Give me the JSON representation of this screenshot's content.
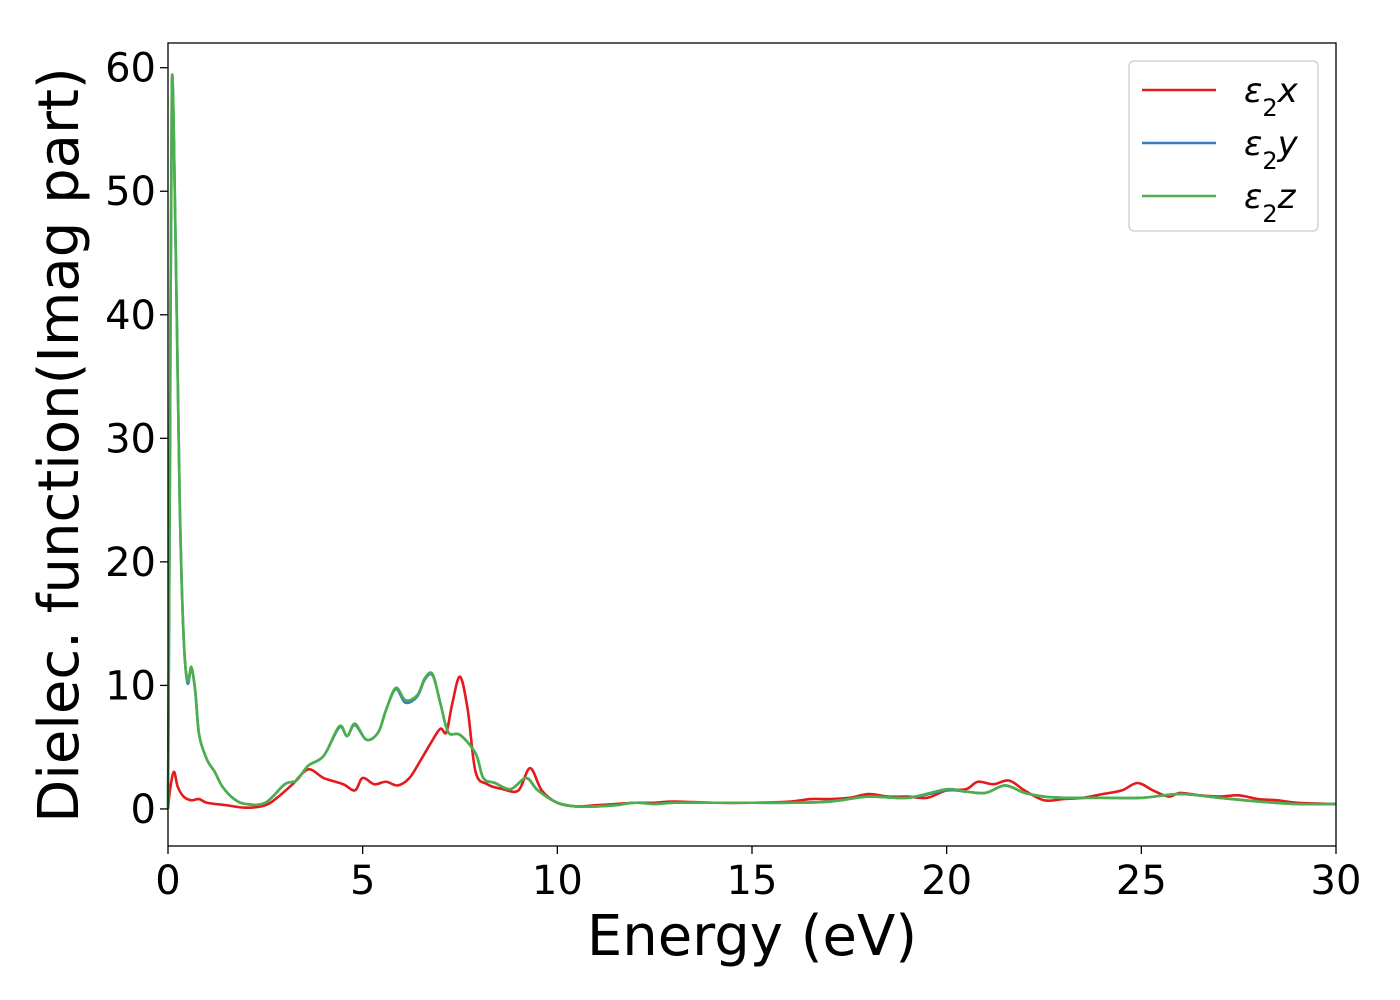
{
  "chart_data": {
    "type": "line",
    "xlabel": "Energy (eV)",
    "ylabel": "Dielec. function(Imag part)",
    "xlim": [
      0,
      30
    ],
    "ylim": [
      -3,
      62
    ],
    "x_ticks": [
      0,
      5,
      10,
      15,
      20,
      25,
      30
    ],
    "y_ticks": [
      0,
      10,
      20,
      30,
      40,
      50,
      60
    ],
    "grid": false,
    "legend_position": "top-right",
    "series": [
      {
        "name": "ε₂x",
        "legend_main": "ε",
        "legend_sub": "2",
        "legend_var": "x",
        "color": "#e41a1c",
        "points": [
          [
            0,
            0
          ],
          [
            0.05,
            1.5
          ],
          [
            0.15,
            3.0
          ],
          [
            0.25,
            1.8
          ],
          [
            0.4,
            1.0
          ],
          [
            0.6,
            0.7
          ],
          [
            0.8,
            0.8
          ],
          [
            1.0,
            0.5
          ],
          [
            1.5,
            0.3
          ],
          [
            2.0,
            0.1
          ],
          [
            2.5,
            0.3
          ],
          [
            2.8,
            0.9
          ],
          [
            3.2,
            2.0
          ],
          [
            3.6,
            3.2
          ],
          [
            4.0,
            2.5
          ],
          [
            4.5,
            2.0
          ],
          [
            4.8,
            1.5
          ],
          [
            5.0,
            2.5
          ],
          [
            5.3,
            2.0
          ],
          [
            5.6,
            2.2
          ],
          [
            5.9,
            1.9
          ],
          [
            6.2,
            2.5
          ],
          [
            6.5,
            4.0
          ],
          [
            6.8,
            5.6
          ],
          [
            7.0,
            6.5
          ],
          [
            7.15,
            6.2
          ],
          [
            7.3,
            8.5
          ],
          [
            7.5,
            10.7
          ],
          [
            7.7,
            8.0
          ],
          [
            7.9,
            3.0
          ],
          [
            8.2,
            2.0
          ],
          [
            8.6,
            1.6
          ],
          [
            9.0,
            1.5
          ],
          [
            9.3,
            3.3
          ],
          [
            9.6,
            1.5
          ],
          [
            10.0,
            0.5
          ],
          [
            10.5,
            0.2
          ],
          [
            11,
            0.3
          ],
          [
            11.5,
            0.4
          ],
          [
            12,
            0.5
          ],
          [
            12.5,
            0.5
          ],
          [
            13,
            0.6
          ],
          [
            14,
            0.5
          ],
          [
            15,
            0.5
          ],
          [
            16,
            0.6
          ],
          [
            16.5,
            0.8
          ],
          [
            17,
            0.8
          ],
          [
            17.5,
            0.9
          ],
          [
            18,
            1.2
          ],
          [
            18.5,
            1.0
          ],
          [
            19,
            1.0
          ],
          [
            19.5,
            0.9
          ],
          [
            20,
            1.5
          ],
          [
            20.5,
            1.6
          ],
          [
            20.8,
            2.2
          ],
          [
            21.2,
            2.0
          ],
          [
            21.6,
            2.3
          ],
          [
            22,
            1.5
          ],
          [
            22.5,
            0.7
          ],
          [
            23,
            0.8
          ],
          [
            23.5,
            0.9
          ],
          [
            24,
            1.2
          ],
          [
            24.5,
            1.5
          ],
          [
            24.9,
            2.1
          ],
          [
            25.3,
            1.5
          ],
          [
            25.7,
            1.0
          ],
          [
            26,
            1.3
          ],
          [
            26.5,
            1.1
          ],
          [
            27,
            1.0
          ],
          [
            27.5,
            1.1
          ],
          [
            28,
            0.8
          ],
          [
            28.5,
            0.7
          ],
          [
            29,
            0.5
          ],
          [
            30,
            0.4
          ]
        ]
      },
      {
        "name": "ε₂y",
        "legend_main": "ε",
        "legend_sub": "2",
        "legend_var": "y",
        "color": "#377eb8",
        "points": [
          [
            0,
            0
          ],
          [
            0.05,
            28
          ],
          [
            0.1,
            58.8
          ],
          [
            0.2,
            45
          ],
          [
            0.3,
            25
          ],
          [
            0.4,
            14
          ],
          [
            0.5,
            10.2
          ],
          [
            0.6,
            11.4
          ],
          [
            0.7,
            9.5
          ],
          [
            0.8,
            6.0
          ],
          [
            1.0,
            4.0
          ],
          [
            1.2,
            3.0
          ],
          [
            1.4,
            1.8
          ],
          [
            1.7,
            0.8
          ],
          [
            2.0,
            0.4
          ],
          [
            2.5,
            0.5
          ],
          [
            3.0,
            2.0
          ],
          [
            3.3,
            2.3
          ],
          [
            3.6,
            3.5
          ],
          [
            4.0,
            4.3
          ],
          [
            4.4,
            6.6
          ],
          [
            4.6,
            5.9
          ],
          [
            4.8,
            6.8
          ],
          [
            5.1,
            5.6
          ],
          [
            5.4,
            6.2
          ],
          [
            5.6,
            8.0
          ],
          [
            5.85,
            9.7
          ],
          [
            6.1,
            8.6
          ],
          [
            6.4,
            9.1
          ],
          [
            6.6,
            10.5
          ],
          [
            6.8,
            10.8
          ],
          [
            7.0,
            8.5
          ],
          [
            7.2,
            6.2
          ],
          [
            7.5,
            6.0
          ],
          [
            7.9,
            4.5
          ],
          [
            8.1,
            2.5
          ],
          [
            8.4,
            2.1
          ],
          [
            8.8,
            1.6
          ],
          [
            9.2,
            2.5
          ],
          [
            9.5,
            1.5
          ],
          [
            10,
            0.5
          ],
          [
            10.5,
            0.2
          ],
          [
            11,
            0.2
          ],
          [
            11.5,
            0.3
          ],
          [
            12,
            0.5
          ],
          [
            12.5,
            0.4
          ],
          [
            13,
            0.5
          ],
          [
            14,
            0.5
          ],
          [
            15,
            0.5
          ],
          [
            16,
            0.5
          ],
          [
            17,
            0.6
          ],
          [
            18,
            1.0
          ],
          [
            19,
            0.9
          ],
          [
            20,
            1.5
          ],
          [
            20.5,
            1.4
          ],
          [
            21,
            1.3
          ],
          [
            21.5,
            1.9
          ],
          [
            22,
            1.3
          ],
          [
            22.5,
            1.0
          ],
          [
            23,
            0.9
          ],
          [
            24,
            0.9
          ],
          [
            25,
            0.9
          ],
          [
            26,
            1.2
          ],
          [
            27,
            0.9
          ],
          [
            28,
            0.6
          ],
          [
            29,
            0.4
          ],
          [
            30,
            0.4
          ]
        ]
      },
      {
        "name": "ε₂z",
        "legend_main": "ε",
        "legend_sub": "2",
        "legend_var": "z",
        "color": "#4daf4a",
        "points": [
          [
            0,
            0
          ],
          [
            0.05,
            28
          ],
          [
            0.1,
            59.0
          ],
          [
            0.2,
            45
          ],
          [
            0.3,
            25
          ],
          [
            0.4,
            14
          ],
          [
            0.5,
            10.4
          ],
          [
            0.6,
            11.5
          ],
          [
            0.7,
            9.6
          ],
          [
            0.8,
            6.0
          ],
          [
            1.0,
            4.0
          ],
          [
            1.2,
            3.0
          ],
          [
            1.4,
            1.8
          ],
          [
            1.7,
            0.8
          ],
          [
            2.0,
            0.4
          ],
          [
            2.5,
            0.5
          ],
          [
            3.0,
            2.0
          ],
          [
            3.3,
            2.3
          ],
          [
            3.6,
            3.5
          ],
          [
            4.0,
            4.3
          ],
          [
            4.4,
            6.7
          ],
          [
            4.6,
            5.9
          ],
          [
            4.8,
            6.9
          ],
          [
            5.1,
            5.6
          ],
          [
            5.4,
            6.2
          ],
          [
            5.6,
            8.0
          ],
          [
            5.85,
            9.8
          ],
          [
            6.1,
            8.8
          ],
          [
            6.4,
            9.2
          ],
          [
            6.6,
            10.6
          ],
          [
            6.8,
            10.9
          ],
          [
            7.0,
            8.5
          ],
          [
            7.2,
            6.2
          ],
          [
            7.5,
            6.0
          ],
          [
            7.9,
            4.5
          ],
          [
            8.1,
            2.5
          ],
          [
            8.4,
            2.1
          ],
          [
            8.8,
            1.6
          ],
          [
            9.2,
            2.5
          ],
          [
            9.5,
            1.5
          ],
          [
            10,
            0.5
          ],
          [
            10.5,
            0.2
          ],
          [
            11,
            0.2
          ],
          [
            11.5,
            0.3
          ],
          [
            12,
            0.5
          ],
          [
            12.5,
            0.4
          ],
          [
            13,
            0.5
          ],
          [
            14,
            0.5
          ],
          [
            15,
            0.5
          ],
          [
            16,
            0.5
          ],
          [
            17,
            0.6
          ],
          [
            18,
            1.0
          ],
          [
            19,
            0.9
          ],
          [
            20,
            1.6
          ],
          [
            20.5,
            1.4
          ],
          [
            21,
            1.3
          ],
          [
            21.5,
            1.9
          ],
          [
            22,
            1.3
          ],
          [
            22.5,
            1.0
          ],
          [
            23,
            0.9
          ],
          [
            24,
            0.9
          ],
          [
            25,
            0.9
          ],
          [
            26,
            1.2
          ],
          [
            27,
            0.9
          ],
          [
            28,
            0.6
          ],
          [
            29,
            0.4
          ],
          [
            30,
            0.4
          ]
        ]
      }
    ]
  }
}
